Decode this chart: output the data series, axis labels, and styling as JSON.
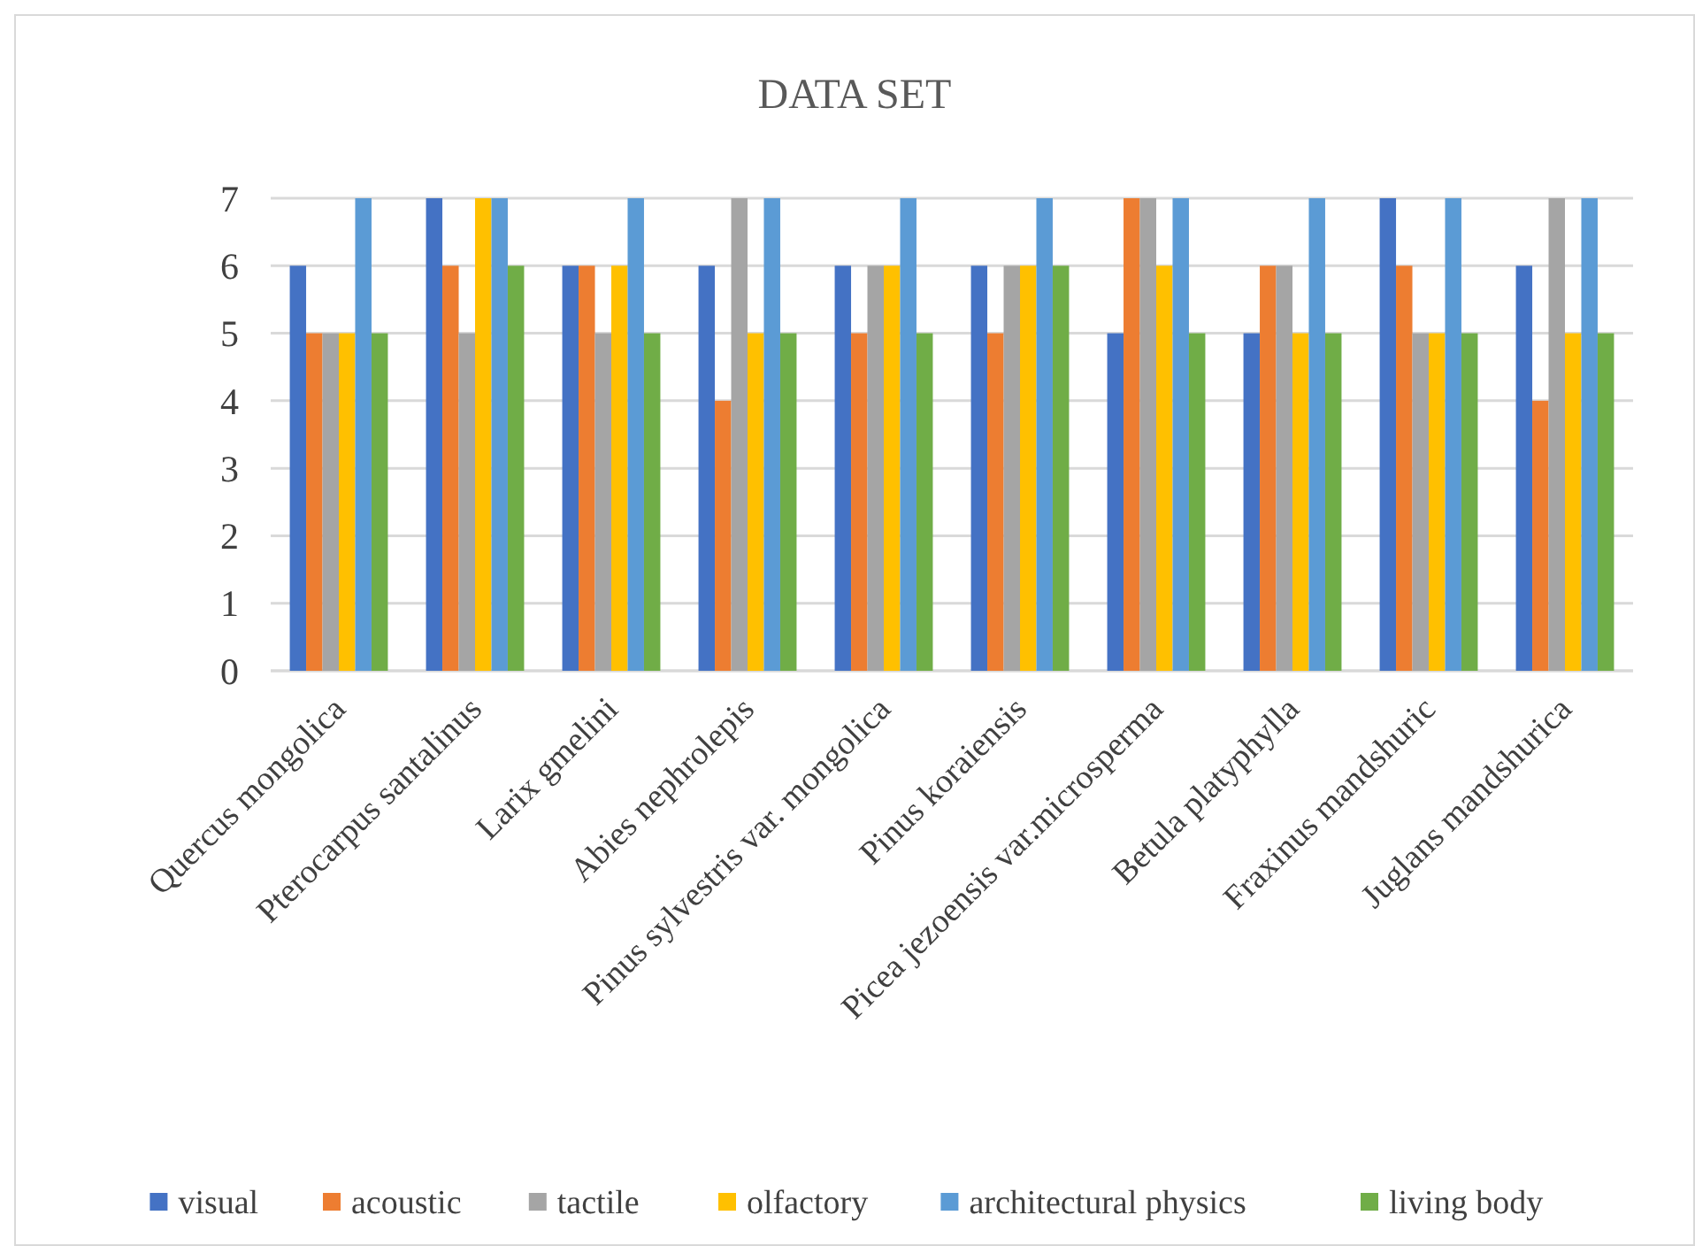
{
  "chart_data": {
    "type": "bar",
    "title": "DATA SET",
    "categories": [
      "Quercus mongolica",
      "Pterocarpus santalinus",
      "Larix gmelini",
      "Abies nephrolepis",
      "Pinus sylvestris var. mongolica",
      "Pinus koraiensis",
      "Picea jezoensis var.microsperma",
      "Betula platyphylla",
      "Fraxinus mandshuric",
      "Juglans mandshurica"
    ],
    "series": [
      {
        "name": "visual",
        "color": "#4472c4",
        "values": [
          6,
          7,
          6,
          6,
          6,
          6,
          5,
          5,
          7,
          6
        ]
      },
      {
        "name": "acoustic",
        "color": "#ed7d31",
        "values": [
          5,
          6,
          6,
          4,
          5,
          5,
          7,
          6,
          6,
          4
        ]
      },
      {
        "name": "tactile",
        "color": "#a5a5a5",
        "values": [
          5,
          5,
          5,
          7,
          6,
          6,
          7,
          6,
          5,
          7
        ]
      },
      {
        "name": "olfactory",
        "color": "#ffc000",
        "values": [
          5,
          7,
          6,
          5,
          6,
          6,
          6,
          5,
          5,
          5
        ]
      },
      {
        "name": "architectural physics",
        "color": "#5b9bd5",
        "values": [
          7,
          7,
          7,
          7,
          7,
          7,
          7,
          7,
          7,
          7
        ]
      },
      {
        "name": "living body",
        "color": "#70ad47",
        "values": [
          5,
          6,
          5,
          5,
          5,
          6,
          5,
          5,
          5,
          5
        ]
      }
    ],
    "ylim": [
      0,
      7
    ],
    "yticks": [
      0,
      1,
      2,
      3,
      4,
      5,
      6,
      7
    ],
    "grid": "y",
    "legend": "bottom"
  }
}
